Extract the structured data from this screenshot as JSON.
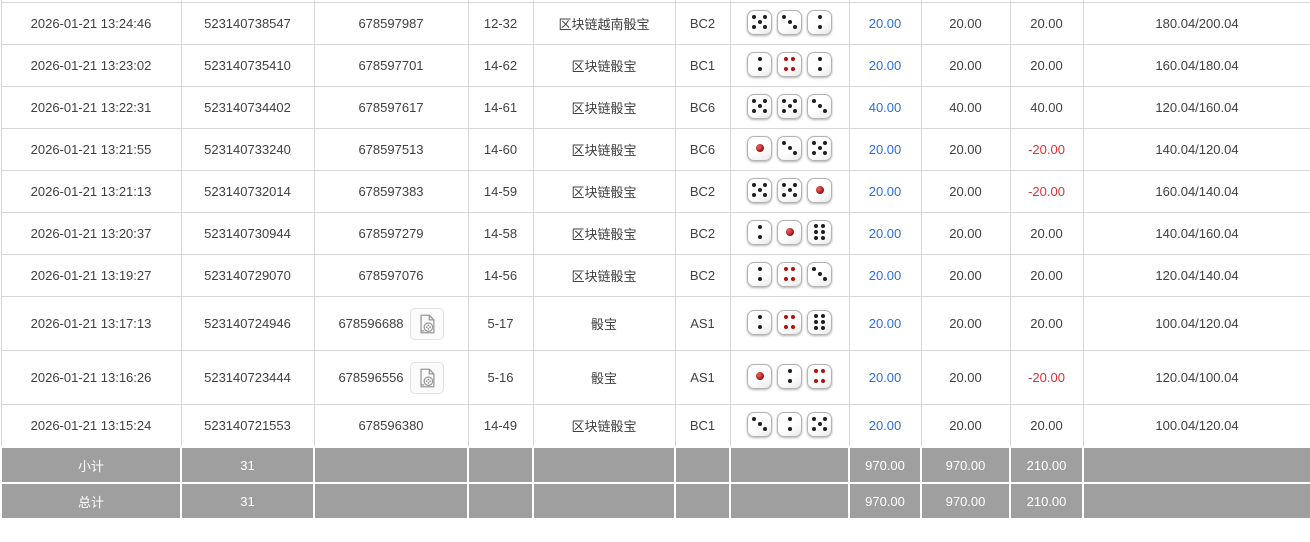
{
  "colors": {
    "link_blue": "#2a6fdb",
    "loss_red": "#e03030",
    "summary_bg": "#9f9f9f",
    "border": "#d6d6d6",
    "text": "#404040"
  },
  "icons": {
    "video_replay": "video-file-icon"
  },
  "table": {
    "rows": [
      {
        "time": "2026-01-21 13:24:46",
        "bet_id": "523140738547",
        "round_id": "678597987",
        "has_video": false,
        "period": "12-32",
        "game": "区块链越南骰宝",
        "table_code": "BC2",
        "dice": [
          5,
          3,
          2
        ],
        "bet_amount": "20.00",
        "valid_amount": "20.00",
        "win_loss": "20.00",
        "win_loss_negative": false,
        "balance": "180.04/200.04"
      },
      {
        "time": "2026-01-21 13:23:02",
        "bet_id": "523140735410",
        "round_id": "678597701",
        "has_video": false,
        "period": "14-62",
        "game": "区块链骰宝",
        "table_code": "BC1",
        "dice": [
          2,
          4,
          2
        ],
        "bet_amount": "20.00",
        "valid_amount": "20.00",
        "win_loss": "20.00",
        "win_loss_negative": false,
        "balance": "160.04/180.04"
      },
      {
        "time": "2026-01-21 13:22:31",
        "bet_id": "523140734402",
        "round_id": "678597617",
        "has_video": false,
        "period": "14-61",
        "game": "区块链骰宝",
        "table_code": "BC6",
        "dice": [
          5,
          5,
          3
        ],
        "bet_amount": "40.00",
        "valid_amount": "40.00",
        "win_loss": "40.00",
        "win_loss_negative": false,
        "balance": "120.04/160.04"
      },
      {
        "time": "2026-01-21 13:21:55",
        "bet_id": "523140733240",
        "round_id": "678597513",
        "has_video": false,
        "period": "14-60",
        "game": "区块链骰宝",
        "table_code": "BC6",
        "dice": [
          1,
          3,
          5
        ],
        "bet_amount": "20.00",
        "valid_amount": "20.00",
        "win_loss": "-20.00",
        "win_loss_negative": true,
        "balance": "140.04/120.04"
      },
      {
        "time": "2026-01-21 13:21:13",
        "bet_id": "523140732014",
        "round_id": "678597383",
        "has_video": false,
        "period": "14-59",
        "game": "区块链骰宝",
        "table_code": "BC2",
        "dice": [
          5,
          5,
          1
        ],
        "bet_amount": "20.00",
        "valid_amount": "20.00",
        "win_loss": "-20.00",
        "win_loss_negative": true,
        "balance": "160.04/140.04"
      },
      {
        "time": "2026-01-21 13:20:37",
        "bet_id": "523140730944",
        "round_id": "678597279",
        "has_video": false,
        "period": "14-58",
        "game": "区块链骰宝",
        "table_code": "BC2",
        "dice": [
          2,
          1,
          6
        ],
        "bet_amount": "20.00",
        "valid_amount": "20.00",
        "win_loss": "20.00",
        "win_loss_negative": false,
        "balance": "140.04/160.04"
      },
      {
        "time": "2026-01-21 13:19:27",
        "bet_id": "523140729070",
        "round_id": "678597076",
        "has_video": false,
        "period": "14-56",
        "game": "区块链骰宝",
        "table_code": "BC2",
        "dice": [
          2,
          4,
          3
        ],
        "bet_amount": "20.00",
        "valid_amount": "20.00",
        "win_loss": "20.00",
        "win_loss_negative": false,
        "balance": "120.04/140.04"
      },
      {
        "time": "2026-01-21 13:17:13",
        "bet_id": "523140724946",
        "round_id": "678596688",
        "has_video": true,
        "period": "5-17",
        "game": "骰宝",
        "table_code": "AS1",
        "dice": [
          2,
          4,
          6
        ],
        "bet_amount": "20.00",
        "valid_amount": "20.00",
        "win_loss": "20.00",
        "win_loss_negative": false,
        "balance": "100.04/120.04"
      },
      {
        "time": "2026-01-21 13:16:26",
        "bet_id": "523140723444",
        "round_id": "678596556",
        "has_video": true,
        "period": "5-16",
        "game": "骰宝",
        "table_code": "AS1",
        "dice": [
          1,
          2,
          4
        ],
        "bet_amount": "20.00",
        "valid_amount": "20.00",
        "win_loss": "-20.00",
        "win_loss_negative": true,
        "balance": "120.04/100.04"
      },
      {
        "time": "2026-01-21 13:15:24",
        "bet_id": "523140721553",
        "round_id": "678596380",
        "has_video": false,
        "period": "14-49",
        "game": "区块链骰宝",
        "table_code": "BC1",
        "dice": [
          3,
          2,
          5
        ],
        "bet_amount": "20.00",
        "valid_amount": "20.00",
        "win_loss": "20.00",
        "win_loss_negative": false,
        "balance": "100.04/120.04"
      }
    ],
    "subtotal": {
      "label": "小计",
      "count": "31",
      "bet_amount": "970.00",
      "valid_amount": "970.00",
      "win_loss": "210.00"
    },
    "total": {
      "label": "总计",
      "count": "31",
      "bet_amount": "970.00",
      "valid_amount": "970.00",
      "win_loss": "210.00"
    }
  }
}
